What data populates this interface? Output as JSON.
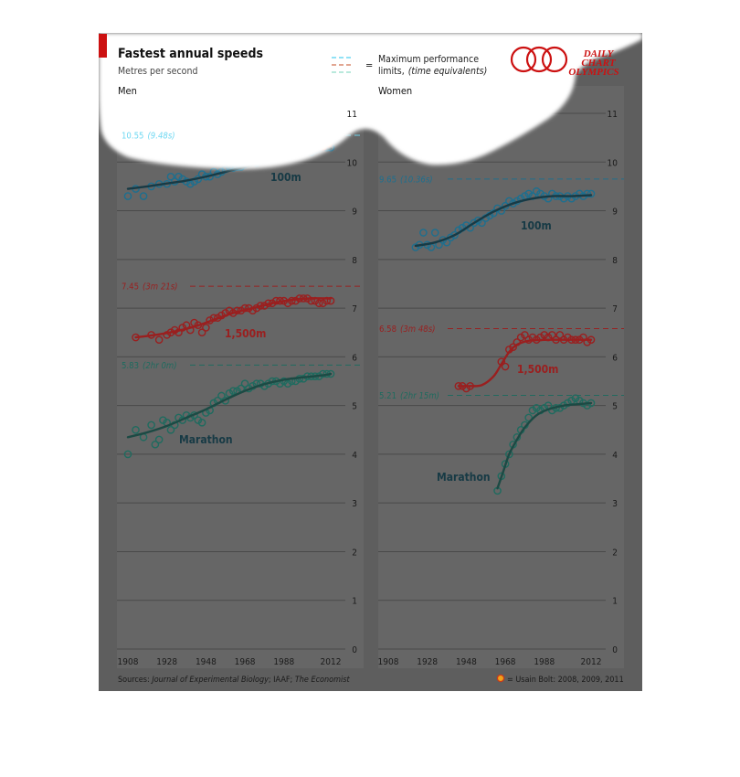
{
  "header": {
    "title": "Fastest annual speeds",
    "subtitle": "Metres per second",
    "legend_line1": "Maximum performance",
    "legend_line2_a": "limits,",
    "legend_line2_b": "(time equivalents)",
    "legend_eq": "=",
    "logo_line1": "DAILY",
    "logo_line2": "CHART",
    "logo_line3": "OLYMPICS"
  },
  "footer": {
    "sources_prefix": "Sources:",
    "sources_1": "Journal of Experimental Biology",
    "sources_2": "; IAAF;",
    "sources_3": "The Economist",
    "bolt_label": "= Usain Bolt: 2008, 2009, 2011"
  },
  "colors": {
    "panel": "#666666",
    "frame": "#5c5c5c",
    "grid": "#4a4a4a",
    "axis_text": "#1a1a1a",
    "speed_100m": "#1d6f8f",
    "speed_1500m": "#9a1f1f",
    "marathon": "#1f6b5f",
    "trend": "#173a45",
    "bolt_fill": "#f0a21a",
    "bolt_stroke": "#c83a1a",
    "logo_red": "#cc1111",
    "accent_bar": "#cc1111",
    "limit_100m": "#4fd0f0",
    "limit_1500m": "#d07050"
  },
  "chart_data": [
    {
      "type": "scatter",
      "title": "Men",
      "ylabel": "Metres per second",
      "xlim": [
        1900,
        2018
      ],
      "ylim": [
        0,
        11
      ],
      "x_ticks": [
        1908,
        1928,
        1948,
        1968,
        1988,
        2012
      ],
      "y_ticks": [
        0,
        1,
        2,
        3,
        4,
        5,
        6,
        7,
        8,
        9,
        10,
        11
      ],
      "grid": true,
      "series": [
        {
          "name": "100m",
          "color_key": "speed_100m",
          "limit": 10.55,
          "limit_label": "10.55",
          "limit_time": "(9.48s)",
          "x": [
            1908,
            1912,
            1916,
            1920,
            1924,
            1928,
            1930,
            1932,
            1934,
            1936,
            1938,
            1940,
            1942,
            1944,
            1946,
            1948,
            1950,
            1952,
            1954,
            1956,
            1958,
            1960,
            1962,
            1964,
            1966,
            1968,
            1970,
            1972,
            1974,
            1976,
            1978,
            1980,
            1982,
            1984,
            1986,
            1988,
            1990,
            1992,
            1994,
            1996,
            1998,
            2000,
            2002,
            2004,
            2006,
            2008,
            2009,
            2010,
            2011,
            2012
          ],
          "y": [
            9.3,
            9.45,
            9.3,
            9.5,
            9.55,
            9.55,
            9.7,
            9.6,
            9.7,
            9.65,
            9.6,
            9.55,
            9.6,
            9.65,
            9.75,
            9.7,
            9.7,
            9.8,
            9.75,
            9.8,
            9.85,
            9.9,
            9.88,
            9.9,
            9.9,
            9.95,
            10.0,
            10.0,
            9.98,
            10.05,
            10.05,
            10.1,
            10.05,
            10.1,
            10.1,
            10.15,
            10.1,
            10.15,
            10.2,
            10.2,
            10.2,
            10.22,
            10.2,
            10.25,
            10.28,
            10.35,
            10.4,
            10.3,
            10.35,
            10.3
          ],
          "trend_x": [
            1908,
            1918,
            1928,
            1938,
            1948,
            1958,
            1968,
            1978,
            1988,
            1998,
            2008,
            2012
          ],
          "trend_y": [
            9.45,
            9.5,
            9.56,
            9.62,
            9.7,
            9.8,
            9.9,
            10.0,
            10.1,
            10.18,
            10.25,
            10.28
          ]
        },
        {
          "name": "1,500m",
          "color_key": "speed_1500m",
          "limit": 7.45,
          "limit_label": "7.45",
          "limit_time": "(3m 21s)",
          "x": [
            1912,
            1920,
            1924,
            1928,
            1930,
            1932,
            1934,
            1936,
            1938,
            1940,
            1942,
            1944,
            1946,
            1948,
            1950,
            1952,
            1954,
            1956,
            1958,
            1960,
            1962,
            1964,
            1966,
            1968,
            1970,
            1972,
            1974,
            1976,
            1978,
            1980,
            1982,
            1984,
            1986,
            1988,
            1990,
            1992,
            1994,
            1996,
            1998,
            2000,
            2002,
            2004,
            2006,
            2008,
            2010,
            2012
          ],
          "y": [
            6.4,
            6.45,
            6.35,
            6.45,
            6.5,
            6.55,
            6.5,
            6.6,
            6.65,
            6.55,
            6.7,
            6.65,
            6.5,
            6.6,
            6.75,
            6.8,
            6.8,
            6.85,
            6.9,
            6.95,
            6.9,
            6.95,
            6.95,
            7.0,
            7.0,
            6.95,
            7.0,
            7.05,
            7.05,
            7.1,
            7.1,
            7.15,
            7.15,
            7.15,
            7.1,
            7.15,
            7.15,
            7.2,
            7.2,
            7.2,
            7.15,
            7.15,
            7.1,
            7.1,
            7.15,
            7.15
          ],
          "trend_x": [
            1912,
            1922,
            1932,
            1942,
            1952,
            1962,
            1972,
            1982,
            1992,
            2002,
            2012
          ],
          "trend_y": [
            6.4,
            6.45,
            6.52,
            6.62,
            6.76,
            6.9,
            7.0,
            7.1,
            7.17,
            7.2,
            7.2
          ]
        },
        {
          "name": "Marathon",
          "color_key": "marathon",
          "limit": 5.83,
          "limit_label": "5.83",
          "limit_time": "(2hr 0m)",
          "x": [
            1908,
            1912,
            1916,
            1920,
            1922,
            1924,
            1926,
            1928,
            1930,
            1932,
            1934,
            1936,
            1938,
            1940,
            1942,
            1944,
            1946,
            1948,
            1950,
            1952,
            1954,
            1956,
            1958,
            1960,
            1962,
            1964,
            1966,
            1968,
            1970,
            1972,
            1974,
            1976,
            1978,
            1980,
            1982,
            1984,
            1986,
            1988,
            1990,
            1992,
            1994,
            1996,
            1998,
            2000,
            2002,
            2004,
            2006,
            2008,
            2010,
            2012
          ],
          "y": [
            4.0,
            4.5,
            4.35,
            4.6,
            4.2,
            4.3,
            4.7,
            4.65,
            4.5,
            4.6,
            4.75,
            4.7,
            4.8,
            4.75,
            4.8,
            4.7,
            4.65,
            4.85,
            4.9,
            5.05,
            5.1,
            5.2,
            5.1,
            5.25,
            5.3,
            5.3,
            5.35,
            5.45,
            5.35,
            5.4,
            5.45,
            5.45,
            5.4,
            5.45,
            5.5,
            5.5,
            5.45,
            5.5,
            5.45,
            5.5,
            5.5,
            5.55,
            5.55,
            5.6,
            5.6,
            5.6,
            5.6,
            5.65,
            5.65,
            5.65
          ],
          "trend_x": [
            1908,
            1918,
            1928,
            1938,
            1948,
            1958,
            1968,
            1978,
            1988,
            1998,
            2008,
            2012
          ],
          "trend_y": [
            4.35,
            4.45,
            4.58,
            4.75,
            4.92,
            5.12,
            5.3,
            5.44,
            5.53,
            5.58,
            5.62,
            5.65
          ]
        }
      ],
      "bolt": {
        "x": [
          2008,
          2009,
          2011
        ],
        "y": [
          10.32,
          10.44,
          10.38
        ]
      }
    },
    {
      "type": "scatter",
      "title": "Women",
      "ylabel": "Metres per second",
      "xlim": [
        1900,
        2018
      ],
      "ylim": [
        0,
        11
      ],
      "x_ticks": [
        1908,
        1928,
        1948,
        1968,
        1988,
        2012
      ],
      "y_ticks": [
        0,
        1,
        2,
        3,
        4,
        5,
        6,
        7,
        8,
        9,
        10,
        11
      ],
      "grid": true,
      "series": [
        {
          "name": "100m",
          "color_key": "speed_100m",
          "limit": 9.65,
          "limit_label": "9.65",
          "limit_time": "(10.36s)",
          "x": [
            1922,
            1924,
            1926,
            1928,
            1930,
            1932,
            1934,
            1936,
            1938,
            1940,
            1942,
            1944,
            1946,
            1948,
            1950,
            1952,
            1954,
            1956,
            1958,
            1960,
            1962,
            1964,
            1966,
            1968,
            1970,
            1972,
            1974,
            1976,
            1978,
            1980,
            1982,
            1984,
            1986,
            1988,
            1990,
            1992,
            1994,
            1996,
            1998,
            2000,
            2002,
            2004,
            2006,
            2008,
            2010,
            2012
          ],
          "y": [
            8.25,
            8.3,
            8.55,
            8.3,
            8.25,
            8.55,
            8.3,
            8.4,
            8.35,
            8.45,
            8.5,
            8.6,
            8.65,
            8.7,
            8.65,
            8.75,
            8.8,
            8.75,
            8.85,
            8.9,
            8.95,
            9.05,
            9.0,
            9.1,
            9.2,
            9.15,
            9.2,
            9.25,
            9.3,
            9.35,
            9.3,
            9.4,
            9.35,
            9.3,
            9.25,
            9.35,
            9.3,
            9.3,
            9.25,
            9.3,
            9.25,
            9.3,
            9.35,
            9.3,
            9.35,
            9.35
          ],
          "trend_x": [
            1922,
            1932,
            1942,
            1952,
            1962,
            1972,
            1982,
            1992,
            2002,
            2012
          ],
          "trend_y": [
            8.28,
            8.35,
            8.5,
            8.75,
            8.98,
            9.15,
            9.25,
            9.3,
            9.3,
            9.32
          ]
        },
        {
          "name": "1,500m",
          "color_key": "speed_1500m",
          "limit": 6.58,
          "limit_label": "6.58",
          "limit_time": "(3m 48s)",
          "x": [
            1944,
            1946,
            1948,
            1950,
            1966,
            1968,
            1970,
            1972,
            1974,
            1976,
            1978,
            1980,
            1982,
            1984,
            1986,
            1988,
            1990,
            1992,
            1994,
            1996,
            1998,
            2000,
            2002,
            2004,
            2006,
            2008,
            2010,
            2012
          ],
          "y": [
            5.4,
            5.4,
            5.35,
            5.4,
            5.9,
            5.8,
            6.15,
            6.2,
            6.3,
            6.4,
            6.45,
            6.35,
            6.4,
            6.35,
            6.4,
            6.45,
            6.4,
            6.45,
            6.35,
            6.45,
            6.35,
            6.4,
            6.35,
            6.35,
            6.35,
            6.4,
            6.3,
            6.35
          ],
          "trend_x": [
            1944,
            1950,
            1956,
            1962,
            1966,
            1970,
            1974,
            1980,
            1990,
            2000,
            2012
          ],
          "trend_y": [
            5.4,
            5.4,
            5.42,
            5.6,
            5.85,
            6.1,
            6.25,
            6.33,
            6.35,
            6.35,
            6.35
          ],
          "bridge_x": [
            1950,
            1966
          ]
        },
        {
          "name": "Marathon",
          "color_key": "marathon",
          "limit": 5.21,
          "limit_label": "5.21",
          "limit_time": "(2hr 15m)",
          "x": [
            1964,
            1966,
            1968,
            1970,
            1972,
            1974,
            1976,
            1978,
            1980,
            1982,
            1984,
            1986,
            1988,
            1990,
            1992,
            1994,
            1996,
            1998,
            2000,
            2002,
            2004,
            2006,
            2008,
            2010,
            2012
          ],
          "y": [
            3.25,
            3.55,
            3.8,
            4.0,
            4.2,
            4.35,
            4.5,
            4.6,
            4.75,
            4.9,
            4.95,
            4.9,
            4.95,
            5.0,
            4.9,
            4.95,
            4.95,
            5.0,
            5.05,
            5.1,
            5.15,
            5.1,
            5.05,
            5.0,
            5.05
          ],
          "trend_x": [
            1964,
            1967,
            1970,
            1974,
            1978,
            1984,
            1990,
            1998,
            2006,
            2012
          ],
          "trend_y": [
            3.3,
            3.65,
            4.0,
            4.3,
            4.55,
            4.8,
            4.92,
            5.0,
            5.03,
            5.05
          ]
        }
      ]
    }
  ]
}
